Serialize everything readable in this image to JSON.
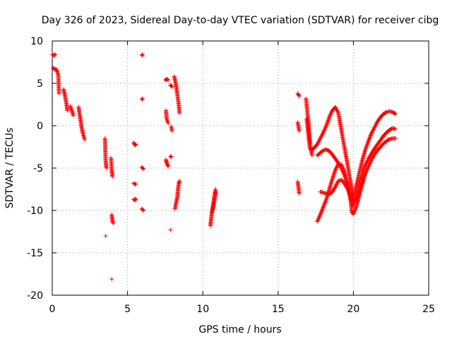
{
  "chart_data": {
    "type": "scatter",
    "title": "Day 326 of 2023, Sidereal Day-to-day VTEC variation (SDTVAR) for receiver cibg",
    "xlabel": "GPS time / hours",
    "ylabel": "SDTVAR / TECUs",
    "xlim": [
      0,
      25
    ],
    "ylim": [
      -20,
      10
    ],
    "xticks": [
      0,
      5,
      10,
      15,
      20,
      25
    ],
    "yticks": [
      -20,
      -15,
      -10,
      -5,
      0,
      5,
      10
    ],
    "grid": true,
    "marker": "plus",
    "series_color": "#ff0000",
    "segments": [
      {
        "x": [
          0.0,
          0.1,
          0.2
        ],
        "y": [
          8.4,
          8.3,
          8.4
        ]
      },
      {
        "x": [
          0.05,
          0.15,
          0.3,
          0.4,
          0.45
        ],
        "y": [
          6.8,
          6.7,
          6.6,
          6.0,
          3.8
        ]
      },
      {
        "x": [
          0.75,
          0.85,
          0.95,
          1.0
        ],
        "y": [
          4.3,
          3.5,
          2.5,
          1.8
        ]
      },
      {
        "x": [
          1.2,
          1.3,
          1.4
        ],
        "y": [
          2.3,
          1.8,
          1.2
        ]
      },
      {
        "x": [
          1.75,
          1.85,
          1.95,
          2.05,
          2.15
        ],
        "y": [
          2.2,
          1.0,
          -0.2,
          -1.0,
          -1.6
        ]
      },
      {
        "x": [
          3.5,
          3.55,
          3.6
        ],
        "y": [
          -1.5,
          -4.2,
          -5.0
        ]
      },
      {
        "x": [
          3.55
        ],
        "y": [
          -13.0
        ]
      },
      {
        "x": [
          3.9,
          3.95,
          4.0
        ],
        "y": [
          -3.8,
          -5.2,
          -6.0
        ]
      },
      {
        "x": [
          3.95,
          4.0,
          4.05
        ],
        "y": [
          -10.5,
          -11.3,
          -11.5
        ]
      },
      {
        "x": [
          3.95
        ],
        "y": [
          -18.1
        ]
      },
      {
        "x": [
          5.4,
          5.5,
          5.55
        ],
        "y": [
          -2.0,
          -2.3,
          -2.2
        ]
      },
      {
        "x": [
          5.4,
          5.5,
          5.55
        ],
        "y": [
          -6.8,
          -6.9,
          -6.9
        ]
      },
      {
        "x": [
          5.4,
          5.5,
          5.55
        ],
        "y": [
          -8.7,
          -8.8,
          -8.6
        ]
      },
      {
        "x": [
          5.95,
          6.0
        ],
        "y": [
          8.3,
          8.4
        ]
      },
      {
        "x": [
          5.95,
          6.0
        ],
        "y": [
          3.1,
          3.2
        ]
      },
      {
        "x": [
          5.95,
          6.05
        ],
        "y": [
          -4.9,
          -5.1
        ]
      },
      {
        "x": [
          5.95,
          6.05
        ],
        "y": [
          -9.8,
          -10.0
        ]
      },
      {
        "x": [
          7.5,
          7.6,
          7.7
        ],
        "y": [
          5.4,
          5.5,
          5.4
        ]
      },
      {
        "x": [
          7.55,
          7.6,
          7.7
        ],
        "y": [
          1.8,
          0.8,
          0.3
        ]
      },
      {
        "x": [
          7.55,
          7.6,
          7.7
        ],
        "y": [
          -4.0,
          -4.4,
          -4.8
        ]
      },
      {
        "x": [
          7.85,
          7.95
        ],
        "y": [
          4.8,
          4.6
        ]
      },
      {
        "x": [
          7.9,
          7.95
        ],
        "y": [
          -0.1,
          -0.6
        ]
      },
      {
        "x": [
          7.85,
          7.9
        ],
        "y": [
          -3.6,
          -3.7
        ]
      },
      {
        "x": [
          7.85
        ],
        "y": [
          -12.3
        ]
      },
      {
        "x": [
          8.1,
          8.2,
          8.3,
          8.4,
          8.45
        ],
        "y": [
          5.8,
          5.0,
          3.8,
          2.5,
          1.5
        ]
      },
      {
        "x": [
          8.15,
          8.2,
          8.3,
          8.35,
          8.4,
          8.45
        ],
        "y": [
          -9.8,
          -9.3,
          -8.5,
          -7.5,
          -6.9,
          -6.5
        ]
      },
      {
        "x": [
          10.5,
          10.55,
          10.6,
          10.65,
          10.7,
          10.75,
          10.8,
          10.85
        ],
        "y": [
          -11.8,
          -11.0,
          -10.3,
          -9.8,
          -9.2,
          -8.5,
          -8.0,
          -7.5
        ]
      },
      {
        "x": [
          10.6,
          10.7,
          10.8,
          10.85
        ],
        "y": [
          -10.2,
          -9.5,
          -8.6,
          -7.8
        ]
      },
      {
        "x": [
          16.3,
          16.4
        ],
        "y": [
          3.8,
          3.5
        ]
      },
      {
        "x": [
          16.3,
          16.4
        ],
        "y": [
          0.4,
          -0.6
        ]
      },
      {
        "x": [
          16.3,
          16.4
        ],
        "y": [
          -6.6,
          -8.0
        ]
      },
      {
        "x": [
          16.85,
          16.95,
          17.05,
          17.15,
          17.25
        ],
        "y": [
          3.2,
          1.5,
          -0.5,
          -2.5,
          -3.5
        ]
      },
      {
        "x": [
          16.9,
          17.0,
          17.1,
          17.2
        ],
        "y": [
          0.8,
          -0.8,
          -2.5,
          -2.9
        ]
      },
      {
        "x": [
          17.2,
          17.4,
          17.6,
          17.8,
          18.0,
          18.2,
          18.4,
          18.6,
          18.8,
          19.0,
          19.2,
          19.4,
          19.6,
          19.8,
          20.0,
          20.2,
          20.4,
          20.6,
          20.8,
          21.0,
          21.2,
          21.4,
          21.6,
          21.8,
          22.0,
          22.2,
          22.4,
          22.6,
          22.8
        ],
        "y": [
          -3.0,
          -2.6,
          -2.2,
          -1.5,
          -0.8,
          0.0,
          1.0,
          1.8,
          2.2,
          1.5,
          -0.5,
          -2.5,
          -4.5,
          -6.5,
          -8.5,
          -7.0,
          -5.5,
          -4.0,
          -2.8,
          -1.8,
          -0.9,
          -0.2,
          0.5,
          1.0,
          1.4,
          1.6,
          1.7,
          1.6,
          1.4
        ]
      },
      {
        "x": [
          17.6,
          17.8,
          18.0,
          18.2,
          18.4,
          18.6,
          18.8,
          19.0,
          19.2,
          19.4,
          19.6,
          19.8,
          20.0,
          20.2,
          20.4,
          20.6,
          20.8,
          21.0,
          21.2,
          21.4,
          21.6,
          21.8,
          22.0,
          22.2,
          22.4,
          22.6,
          22.8
        ],
        "y": [
          -3.5,
          -3.2,
          -2.9,
          -2.8,
          -3.0,
          -3.4,
          -3.9,
          -4.4,
          -5.0,
          -5.8,
          -7.0,
          -8.5,
          -9.5,
          -8.0,
          -6.5,
          -5.5,
          -4.6,
          -3.9,
          -3.3,
          -2.7,
          -2.2,
          -1.7,
          -1.2,
          -0.8,
          -0.5,
          -0.3,
          -0.4
        ]
      },
      {
        "x": [
          17.8,
          18.0,
          18.2,
          18.4,
          18.6,
          18.8,
          19.0,
          19.2,
          19.4,
          19.6,
          19.8,
          20.0,
          20.2,
          20.4,
          20.6,
          20.8,
          21.0,
          21.2,
          21.4,
          21.6,
          21.8,
          22.0,
          22.2,
          22.4,
          22.6,
          22.8
        ],
        "y": [
          -7.8,
          -7.9,
          -8.0,
          -8.1,
          -7.8,
          -7.2,
          -6.5,
          -6.4,
          -6.8,
          -7.4,
          -8.2,
          -9.0,
          -8.6,
          -7.6,
          -6.6,
          -5.6,
          -4.8,
          -4.0,
          -3.4,
          -2.9,
          -2.5,
          -2.1,
          -1.8,
          -1.6,
          -1.5,
          -1.5
        ]
      },
      {
        "x": [
          17.6,
          17.8,
          18.0,
          18.2,
          18.4,
          18.6,
          18.8,
          19.0,
          19.2,
          19.4,
          19.6,
          19.8,
          19.9,
          20.0,
          20.2,
          20.4,
          20.6,
          20.8
        ],
        "y": [
          -11.3,
          -10.5,
          -9.6,
          -8.7,
          -7.5,
          -6.3,
          -5.2,
          -4.5,
          -4.6,
          -5.4,
          -6.8,
          -8.6,
          -10.2,
          -10.4,
          -9.5,
          -8.2,
          -6.8,
          -5.5
        ]
      }
    ]
  }
}
